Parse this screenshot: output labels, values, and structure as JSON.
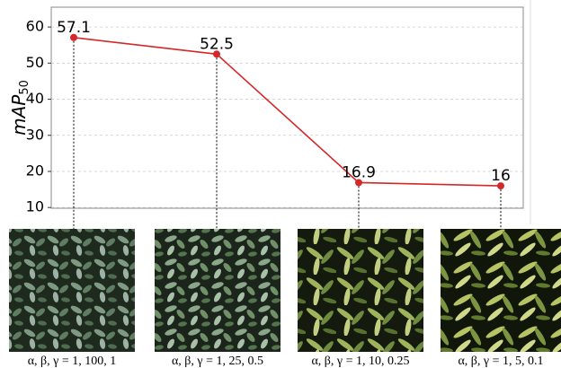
{
  "chart_data": {
    "type": "line",
    "y_label": "mAP",
    "y_label_subscript": "50",
    "categories": [
      "α, β, γ = 1, 100, 1",
      "α, β, γ = 1, 25, 0.5",
      "α, β, γ = 1, 10, 0.25",
      "α, β, γ = 1, 5, 0.1"
    ],
    "values": [
      57.1,
      52.5,
      16.9,
      16.0
    ],
    "color": "#d62728",
    "ylim": [
      9.8,
      65.5
    ],
    "yticks": [
      10,
      20,
      30,
      40,
      50,
      60
    ],
    "grid": true
  }
}
